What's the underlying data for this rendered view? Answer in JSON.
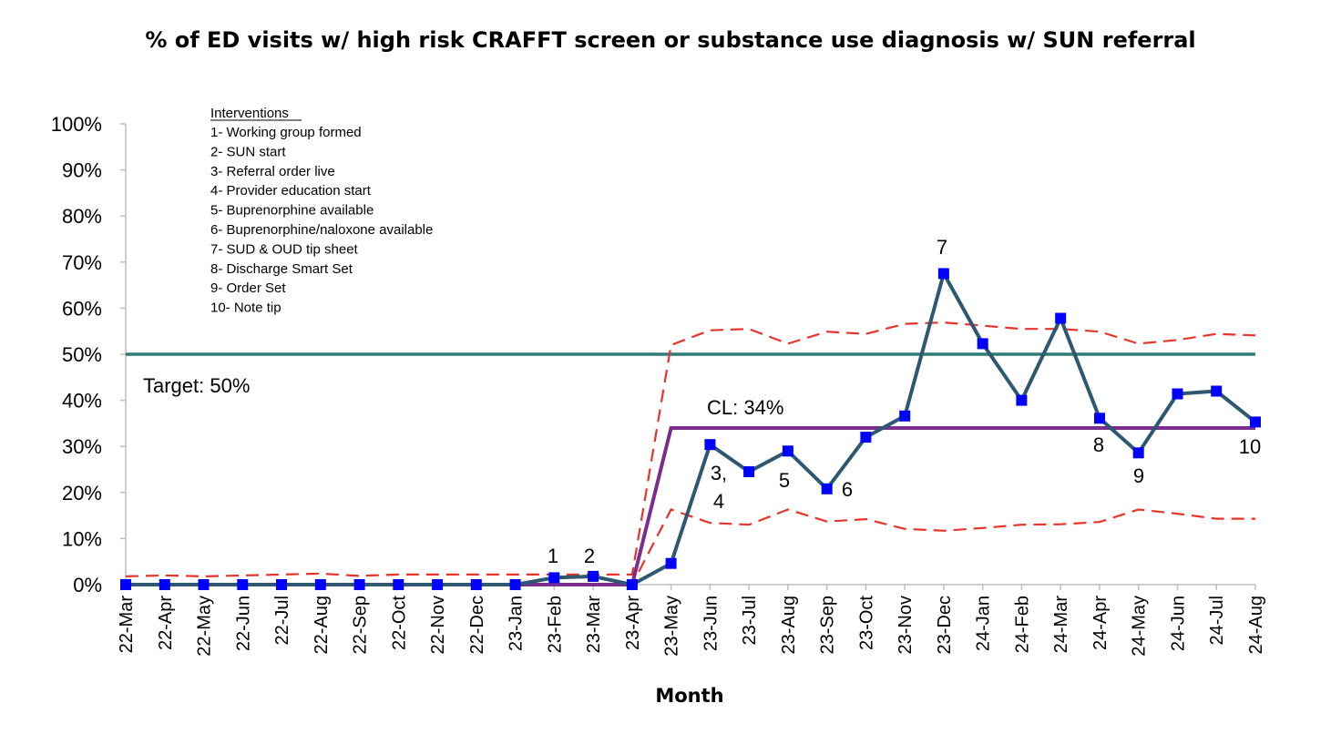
{
  "chart_data": {
    "type": "line",
    "title": "% of ED visits w/ high risk CRAFFT screen or substance use diagnosis w/ SUN referral",
    "xlabel": "Month",
    "ylabel": "",
    "ylim": [
      0,
      100
    ],
    "yticks": [
      "0%",
      "10%",
      "20%",
      "30%",
      "40%",
      "50%",
      "60%",
      "70%",
      "80%",
      "90%",
      "100%"
    ],
    "grid": false,
    "categories": [
      "22-Mar",
      "22-Apr",
      "22-May",
      "22-Jun",
      "22-Jul",
      "22-Aug",
      "22-Sep",
      "22-Oct",
      "22-Nov",
      "22-Dec",
      "23-Jan",
      "23-Feb",
      "23-Mar",
      "23-Apr",
      "23-May",
      "23-Jun",
      "23-Jul",
      "23-Aug",
      "23-Sep",
      "23-Oct",
      "23-Nov",
      "23-Dec",
      "24-Jan",
      "24-Feb",
      "24-Mar",
      "24-Apr",
      "24-May",
      "24-Jun",
      "24-Jul",
      "24-Aug"
    ],
    "series": [
      {
        "role": "data",
        "color": "#2e5870",
        "marker_color": "#0000ff",
        "values": [
          0,
          0,
          0,
          0,
          0,
          0,
          0,
          0,
          0,
          0,
          0,
          1.5,
          1.8,
          0,
          4.6,
          30.4,
          24.5,
          29,
          20.8,
          32,
          36.6,
          67.5,
          52.3,
          40,
          57.8,
          36.1,
          28.6,
          41.4,
          42,
          35.3
        ]
      },
      {
        "role": "center-line",
        "color": "#7b2d8e",
        "values": [
          0,
          0,
          0,
          0,
          0,
          0,
          0,
          0,
          0,
          0,
          0,
          0,
          0,
          0,
          34,
          34,
          34,
          34,
          34,
          34,
          34,
          34,
          34,
          34,
          34,
          34,
          34,
          34,
          34,
          34
        ]
      },
      {
        "role": "upper-control-limit",
        "color": "#e8332a",
        "values": [
          1.8,
          2,
          1.8,
          2,
          2.2,
          2.4,
          1.9,
          2.2,
          2.2,
          2.2,
          2.2,
          2.2,
          2.2,
          2.2,
          52,
          55.2,
          55.5,
          52.3,
          54.9,
          54.4,
          56.6,
          56.9,
          56.2,
          55.5,
          55.5,
          54.9,
          52.3,
          53.1,
          54.4,
          54.1
        ]
      },
      {
        "role": "lower-control-limit",
        "color": "#e8332a",
        "values": [
          0,
          0,
          0,
          0,
          0,
          0,
          0,
          0,
          0,
          0,
          0,
          0,
          0,
          0,
          16.3,
          13.4,
          13,
          16.3,
          13.7,
          14.2,
          12.1,
          11.7,
          12.3,
          13,
          13.1,
          13.6,
          16.3,
          15.4,
          14.3,
          14.3
        ]
      },
      {
        "role": "target",
        "color": "#2e7d78",
        "values": [
          50,
          50,
          50,
          50,
          50,
          50,
          50,
          50,
          50,
          50,
          50,
          50,
          50,
          50,
          50,
          50,
          50,
          50,
          50,
          50,
          50,
          50,
          50,
          50,
          50,
          50,
          50,
          50,
          50,
          50
        ]
      }
    ],
    "annotations": [
      {
        "text": "Target: 50%"
      },
      {
        "text": "CL: 34%"
      },
      {
        "text": "1"
      },
      {
        "text": "2"
      },
      {
        "text": "3,"
      },
      {
        "text": "4"
      },
      {
        "text": "5"
      },
      {
        "text": "6"
      },
      {
        "text": "7"
      },
      {
        "text": "8"
      },
      {
        "text": "9"
      },
      {
        "text": "10"
      }
    ],
    "interventions": {
      "heading": "Interventions",
      "items": [
        "1- Working group formed",
        "2- SUN start",
        "3- Referral order live",
        "4- Provider education start",
        "5- Buprenorphine available",
        "6- Buprenorphine/naloxone available",
        "7- SUD & OUD tip sheet",
        "8- Discharge Smart Set",
        "9- Order Set",
        "10- Note tip"
      ]
    }
  }
}
